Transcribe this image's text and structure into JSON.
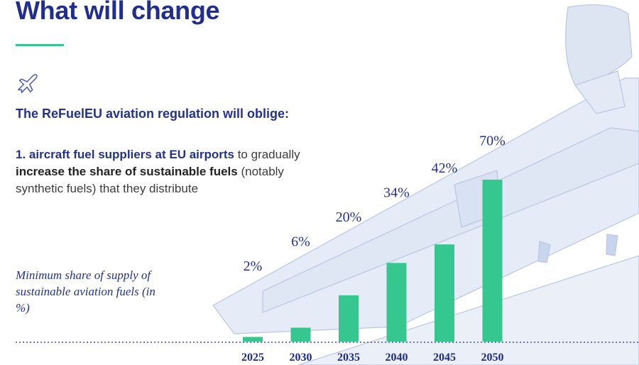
{
  "header": {
    "title": "What will change"
  },
  "intro": {
    "lead": "The ReFuelEU aviation regulation will oblige:",
    "item_1_prefix": "1. aircraft fuel suppliers at EU airports",
    "item_1_middle": " to gradually ",
    "item_1_emphasis": "increase the share of sustainable fuels",
    "item_1_suffix": " (notably synthetic fuels) that they distribute"
  },
  "chart_label": "Minimum share of supply of sustainable aviation fuels (in %)",
  "icons": {
    "plane": "airplane-icon"
  },
  "colors": {
    "title": "#1f2e8f",
    "accent": "#35c78f",
    "bar": "#35c78f",
    "text_blue": "#22328e"
  },
  "chart_data": {
    "type": "bar",
    "categories": [
      "2025",
      "2030",
      "2035",
      "2040",
      "2045",
      "2050"
    ],
    "values": [
      2,
      6,
      20,
      34,
      42,
      70
    ],
    "value_labels": [
      "2%",
      "6%",
      "20%",
      "34%",
      "42%",
      "70%"
    ],
    "title": "",
    "xlabel": "",
    "ylabel": "Minimum share of supply of sustainable aviation fuels (in %)",
    "ylim": [
      0,
      70
    ],
    "grid": false,
    "legend": "none"
  }
}
